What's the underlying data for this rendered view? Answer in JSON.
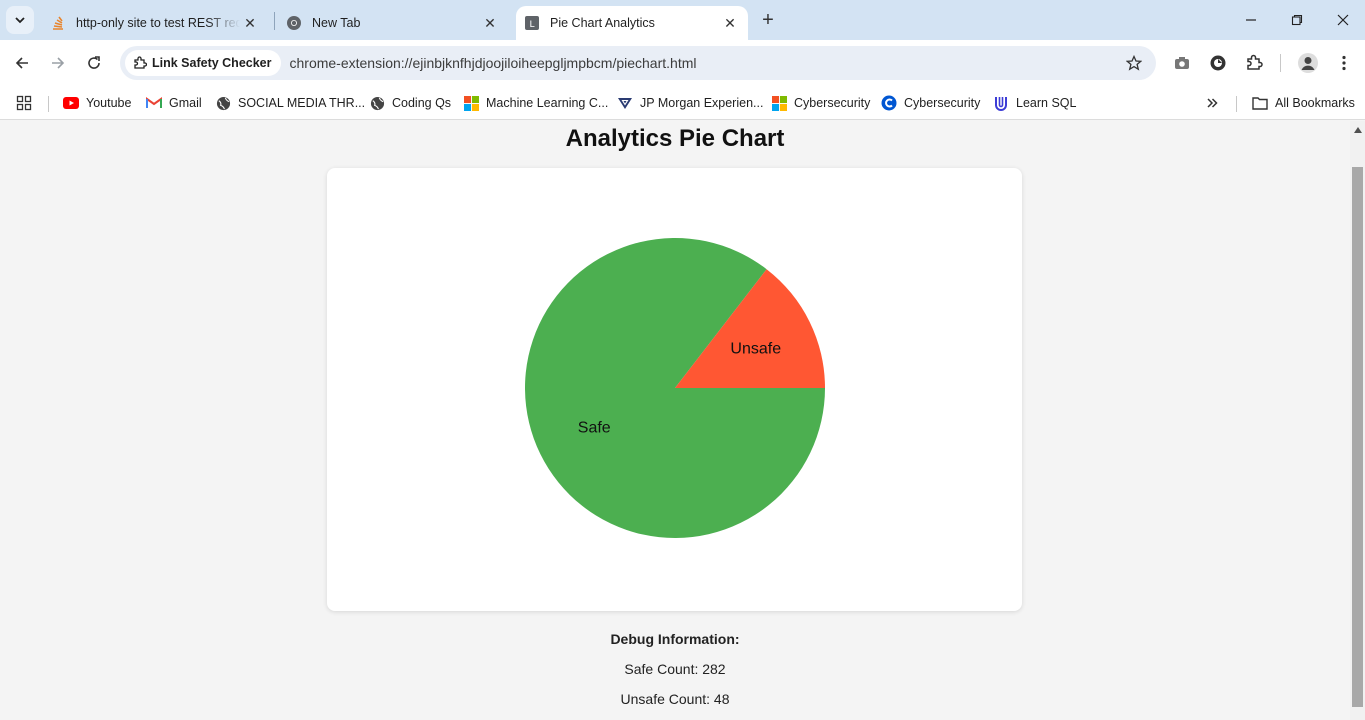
{
  "browser": {
    "tabs": [
      {
        "title": "http-only site to test REST reque",
        "favicon": "stack-icon"
      },
      {
        "title": "New Tab",
        "favicon": "chrome-icon"
      },
      {
        "title": "Pie Chart Analytics",
        "favicon": "L",
        "active": true
      }
    ],
    "omnibox": {
      "chip_label": "Link Safety Checker",
      "url": "chrome-extension://ejinbjknfhjdjoojiloiheepgljmpbcm/piechart.html"
    },
    "bookmarks": [
      {
        "label": "Youtube",
        "icon": "youtube-icon"
      },
      {
        "label": "Gmail",
        "icon": "gmail-icon"
      },
      {
        "label": "SOCIAL MEDIA THR...",
        "icon": "globe-icon"
      },
      {
        "label": "Coding Qs",
        "icon": "globe-icon"
      },
      {
        "label": "Machine Learning C...",
        "icon": "microsoft-icon"
      },
      {
        "label": "JP Morgan Experien...",
        "icon": "forage-icon"
      },
      {
        "label": "Cybersecurity",
        "icon": "microsoft-icon"
      },
      {
        "label": "Cybersecurity",
        "icon": "coursera-icon"
      },
      {
        "label": "Learn SQL",
        "icon": "udacity-icon"
      }
    ],
    "all_bookmarks": "All Bookmarks"
  },
  "page": {
    "title": "Analytics Pie Chart",
    "debug_heading": "Debug Information:",
    "safe_count_text": "Safe Count: 282",
    "unsafe_count_text": "Unsafe Count: 48"
  },
  "chart_data": {
    "type": "pie",
    "categories": [
      "Safe",
      "Unsafe"
    ],
    "values": [
      282,
      48
    ],
    "colors": [
      "#4caf50",
      "#ff5733"
    ],
    "title": ""
  }
}
